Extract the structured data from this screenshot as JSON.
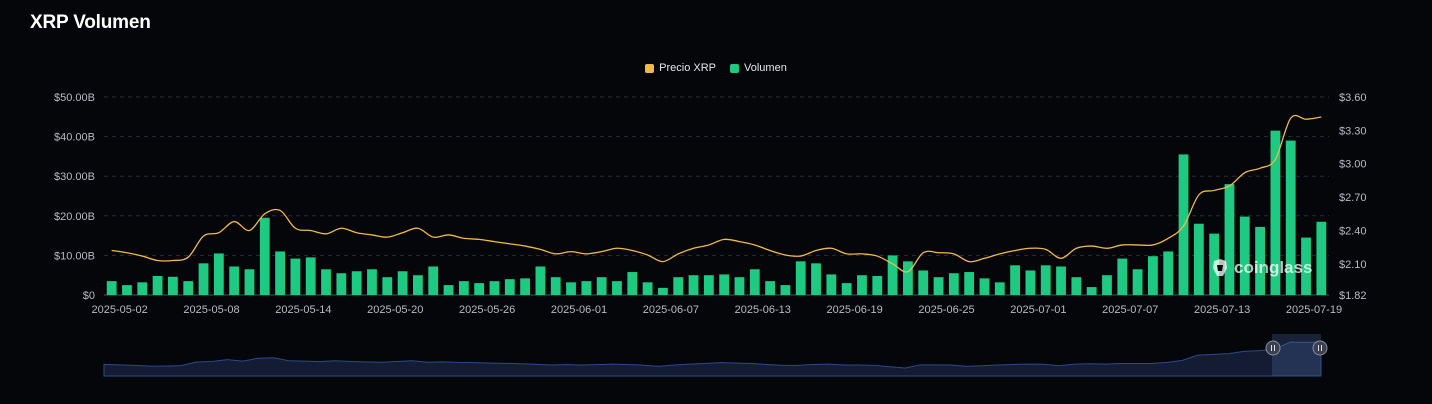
{
  "header": {
    "title": "XRP Volumen"
  },
  "legend": [
    {
      "label": "Precio XRP",
      "color": "#f0b94a"
    },
    {
      "label": "Volumen",
      "color": "#1ec981"
    }
  ],
  "watermark": {
    "text": "coinglass"
  },
  "colors": {
    "background": "#05060a",
    "bar": "#1ec981",
    "price_line": "#f0b94a",
    "navigator": "#2a4a8a"
  },
  "chart_data": {
    "type": "bar",
    "title": "XRP Volumen",
    "x_tick_labels": [
      "2025-05-02",
      "2025-05-08",
      "2025-05-14",
      "2025-05-20",
      "2025-05-26",
      "2025-06-01",
      "2025-06-07",
      "2025-06-13",
      "2025-06-19",
      "2025-06-25",
      "2025-07-01",
      "2025-07-07",
      "2025-07-13",
      "2025-07-19"
    ],
    "y_left_ticks": [
      "$0",
      "$10.00B",
      "$20.00B",
      "$30.00B",
      "$40.00B",
      "$50.00B"
    ],
    "y_right_ticks": [
      "$1.82",
      "$2.10",
      "$2.40",
      "$2.70",
      "$3.00",
      "$3.30",
      "$3.60"
    ],
    "ylim_left": [
      0,
      50
    ],
    "ylim_right": [
      1.82,
      3.6
    ],
    "grid": true,
    "legend_position": "top-center",
    "x_start": "2025-05-02",
    "series": [
      {
        "name": "Volumen",
        "unit": "B USD",
        "axis": "left",
        "values": [
          3.5,
          2.5,
          3.2,
          4.8,
          4.6,
          3.5,
          8.0,
          10.5,
          7.2,
          6.5,
          19.5,
          11.0,
          9.2,
          9.5,
          6.5,
          5.5,
          6.0,
          6.5,
          4.5,
          6.0,
          5.0,
          7.2,
          2.5,
          3.5,
          3.0,
          3.5,
          4.0,
          4.2,
          7.2,
          4.5,
          3.2,
          3.5,
          4.5,
          3.5,
          5.8,
          3.2,
          1.8,
          4.5,
          5.0,
          5.0,
          5.2,
          4.5,
          6.5,
          3.5,
          2.5,
          8.5,
          8.0,
          5.2,
          3.0,
          5.0,
          4.8,
          10.0,
          8.5,
          6.2,
          4.5,
          5.5,
          5.8,
          4.2,
          3.2,
          7.5,
          6.2,
          7.5,
          7.2,
          4.5,
          2.0,
          5.0,
          9.2,
          6.5,
          9.8,
          11.0,
          35.5,
          18.0,
          15.5,
          28.0,
          19.8,
          17.2,
          41.5,
          39.0,
          14.5,
          18.5
        ]
      },
      {
        "name": "Precio XRP",
        "unit": "USD",
        "axis": "right",
        "type": "line",
        "values": [
          2.22,
          2.2,
          2.17,
          2.13,
          2.13,
          2.16,
          2.35,
          2.38,
          2.48,
          2.4,
          2.55,
          2.58,
          2.42,
          2.4,
          2.37,
          2.42,
          2.38,
          2.36,
          2.34,
          2.38,
          2.42,
          2.34,
          2.36,
          2.33,
          2.32,
          2.3,
          2.28,
          2.26,
          2.23,
          2.19,
          2.21,
          2.19,
          2.21,
          2.24,
          2.22,
          2.18,
          2.12,
          2.19,
          2.24,
          2.27,
          2.32,
          2.3,
          2.27,
          2.22,
          2.18,
          2.17,
          2.22,
          2.24,
          2.19,
          2.19,
          2.17,
          2.1,
          2.03,
          2.2,
          2.2,
          2.19,
          2.12,
          2.15,
          2.19,
          2.22,
          2.24,
          2.23,
          2.15,
          2.24,
          2.26,
          2.24,
          2.27,
          2.27,
          2.27,
          2.33,
          2.44,
          2.72,
          2.76,
          2.8,
          2.92,
          2.96,
          3.04,
          3.41,
          3.4,
          3.42
        ]
      }
    ]
  }
}
